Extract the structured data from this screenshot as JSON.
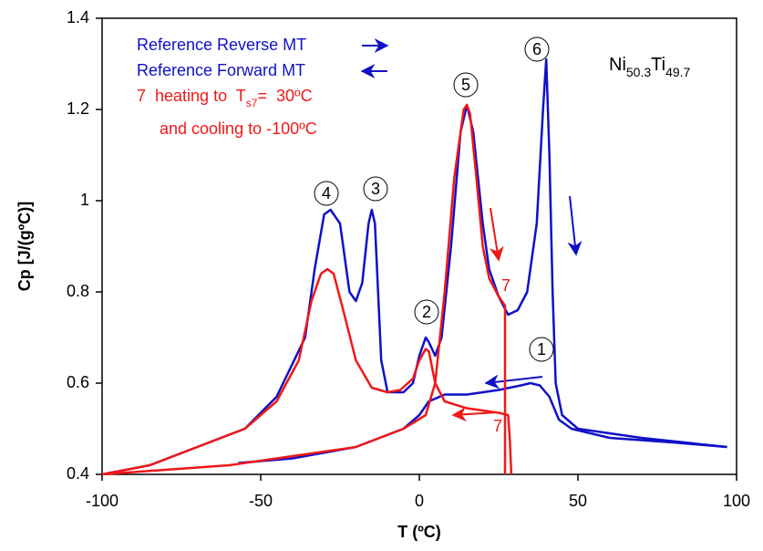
{
  "chart_data": {
    "type": "line",
    "title": [
      "Ni",
      "50.3",
      "Ti",
      "49.7"
    ],
    "xlabel": "T (ºC)",
    "ylabel": "Cp [J/(gºC)]",
    "xlim": [
      -100,
      100
    ],
    "xticks": [
      -100,
      -50,
      0,
      50,
      100
    ],
    "ylim": [
      0.4,
      1.4
    ],
    "yticks": [
      0.4,
      0.6,
      0.8,
      1,
      1.2,
      1.4
    ],
    "series": [
      {
        "name": "Reference  Reverse MT",
        "color": "#1010c8",
        "x": [
          -57,
          -40,
          -20,
          -5,
          0,
          3,
          8,
          15,
          25,
          32,
          35,
          38,
          41,
          44,
          48,
          60,
          80,
          97
        ],
        "values": [
          0.425,
          0.435,
          0.46,
          0.5,
          0.53,
          0.56,
          0.575,
          0.575,
          0.585,
          0.595,
          0.6,
          0.595,
          0.57,
          0.52,
          0.5,
          0.48,
          0.47,
          0.46
        ]
      },
      {
        "name": "Reference  Forward MT",
        "color": "#1010c8",
        "x": [
          97,
          70,
          50,
          45,
          43,
          42,
          41,
          40,
          39,
          37,
          34,
          31,
          28,
          25,
          22,
          20,
          17,
          15,
          13,
          10,
          7,
          5,
          3,
          2,
          0,
          -2,
          -5,
          -10,
          -12,
          -14,
          -15,
          -16,
          -18,
          -20,
          -22,
          -25,
          -28,
          -30,
          -33,
          -36,
          -45,
          -55,
          -70,
          -85,
          -100
        ],
        "values": [
          0.46,
          0.48,
          0.5,
          0.53,
          0.6,
          0.8,
          1.1,
          1.31,
          1.2,
          0.95,
          0.8,
          0.76,
          0.75,
          0.79,
          0.85,
          0.95,
          1.15,
          1.21,
          1.15,
          0.9,
          0.7,
          0.66,
          0.69,
          0.7,
          0.66,
          0.6,
          0.58,
          0.58,
          0.65,
          0.95,
          0.98,
          0.95,
          0.82,
          0.78,
          0.8,
          0.95,
          0.98,
          0.97,
          0.85,
          0.7,
          0.57,
          0.5,
          0.46,
          0.42,
          0.4
        ]
      },
      {
        "name": [
          "7  heating to  T",
          "s7",
          "=  30ºC",
          "and cooling to -100ºC"
        ],
        "color": "#f01818",
        "x": [
          -100,
          -80,
          -60,
          -40,
          -20,
          -5,
          2,
          5,
          8,
          11,
          14,
          15,
          16,
          18,
          20,
          22,
          25,
          27,
          27,
          null,
          29,
          28.5,
          28,
          25,
          15,
          8,
          5,
          3,
          2,
          0,
          -2,
          -6,
          -10,
          -15,
          -20,
          -24,
          -27,
          -29,
          -31,
          -34,
          -38,
          -45,
          -55,
          -70,
          -85,
          -100
        ],
        "values": [
          0.4,
          0.41,
          0.42,
          0.44,
          0.46,
          0.5,
          0.53,
          0.6,
          0.8,
          1.05,
          1.2,
          1.21,
          1.19,
          1.05,
          0.9,
          0.83,
          0.79,
          0.77,
          0.4,
          null,
          0.4,
          0.48,
          0.53,
          0.535,
          0.545,
          0.56,
          0.6,
          0.67,
          0.675,
          0.65,
          0.61,
          0.585,
          0.58,
          0.59,
          0.65,
          0.76,
          0.84,
          0.85,
          0.84,
          0.78,
          0.65,
          0.56,
          0.5,
          0.46,
          0.42,
          0.4
        ]
      }
    ],
    "annotations": [
      "1",
      "2",
      "3",
      "4",
      "5",
      "6",
      "7",
      "7"
    ]
  }
}
